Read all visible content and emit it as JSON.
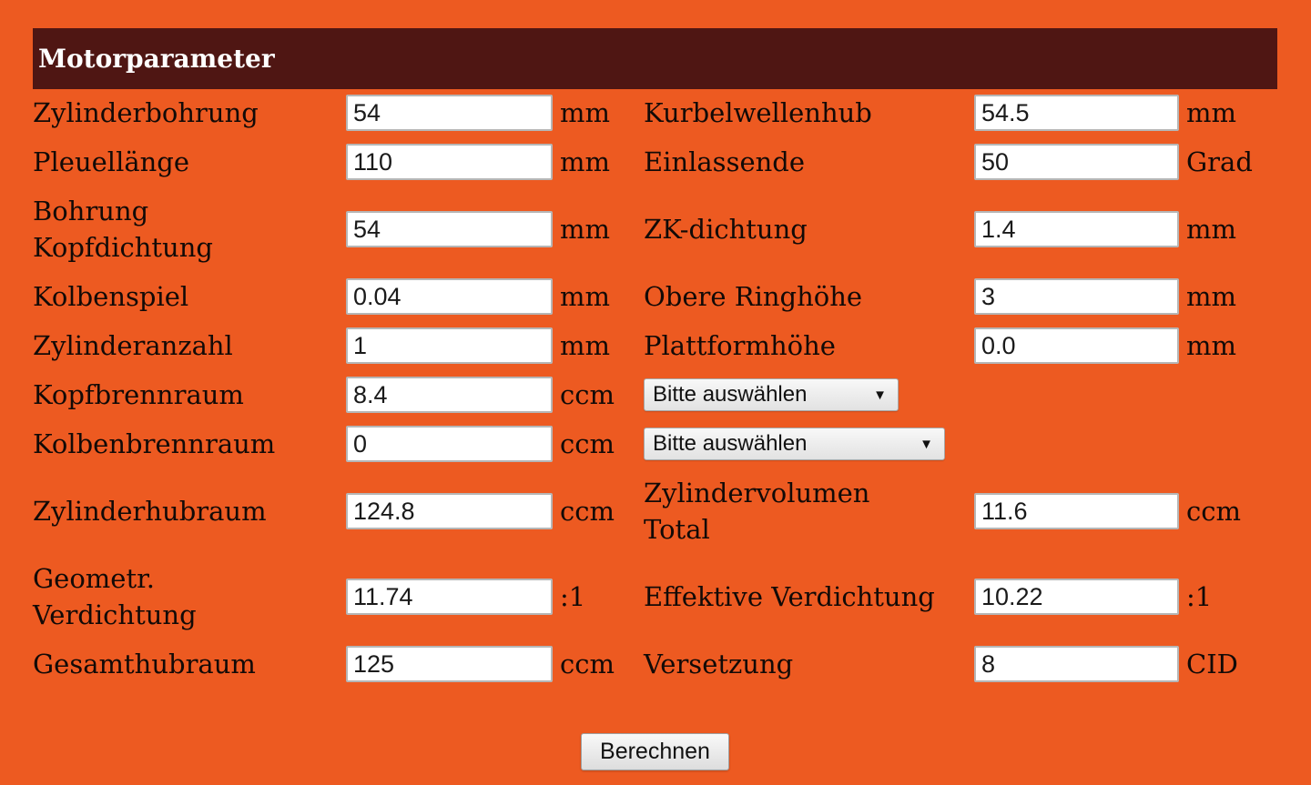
{
  "title": "Motorparameter",
  "colors": {
    "background": "#ED5A21",
    "header": "#4F1613"
  },
  "rows": [
    {
      "left": {
        "label": "Zylinderbohrung",
        "value": "54",
        "unit": "mm"
      },
      "right": {
        "label": "Kurbelwellenhub",
        "value": "54.5",
        "unit": "mm"
      }
    },
    {
      "left": {
        "label": "Pleuellänge",
        "value": "110",
        "unit": "mm"
      },
      "right": {
        "label": "Einlassende",
        "value": "50",
        "unit": "Grad"
      }
    },
    {
      "left": {
        "label": "Bohrung\nKopfdichtung",
        "value": "54",
        "unit": "mm"
      },
      "right": {
        "label": "ZK-dichtung",
        "value": "1.4",
        "unit": "mm"
      }
    },
    {
      "left": {
        "label": "Kolbenspiel",
        "value": "0.04",
        "unit": "mm"
      },
      "right": {
        "label": "Obere Ringhöhe",
        "value": "3",
        "unit": "mm"
      }
    },
    {
      "left": {
        "label": "Zylinderanzahl",
        "value": "1",
        "unit": "mm"
      },
      "right": {
        "label": "Plattformhöhe",
        "value": "0.0",
        "unit": "mm"
      }
    },
    {
      "left": {
        "label": "Kopfbrennraum",
        "value": "8.4",
        "unit": "ccm"
      },
      "right_select": {
        "value": "Bitte auswählen"
      }
    },
    {
      "left": {
        "label": "Kolbenbrennraum",
        "value": "0",
        "unit": "ccm"
      },
      "right_select": {
        "value": "Bitte auswählen"
      }
    },
    {
      "left": {
        "label": "Zylinderhubraum",
        "value": "124.8",
        "unit": "ccm"
      },
      "right": {
        "label": "Zylindervolumen\nTotal",
        "value": "11.6",
        "unit": "ccm"
      }
    },
    {
      "left": {
        "label": "Geometr.\nVerdichtung",
        "value": "11.74",
        "unit": ":1"
      },
      "right": {
        "label": "Effektive Verdichtung",
        "value": "10.22",
        "unit": ":1"
      }
    },
    {
      "left": {
        "label": "Gesamthubraum",
        "value": "125",
        "unit": "ccm"
      },
      "right": {
        "label": "Versetzung",
        "value": "8",
        "unit": "CID"
      }
    }
  ],
  "select_arrow": "▼",
  "button": {
    "label": "Berechnen"
  }
}
